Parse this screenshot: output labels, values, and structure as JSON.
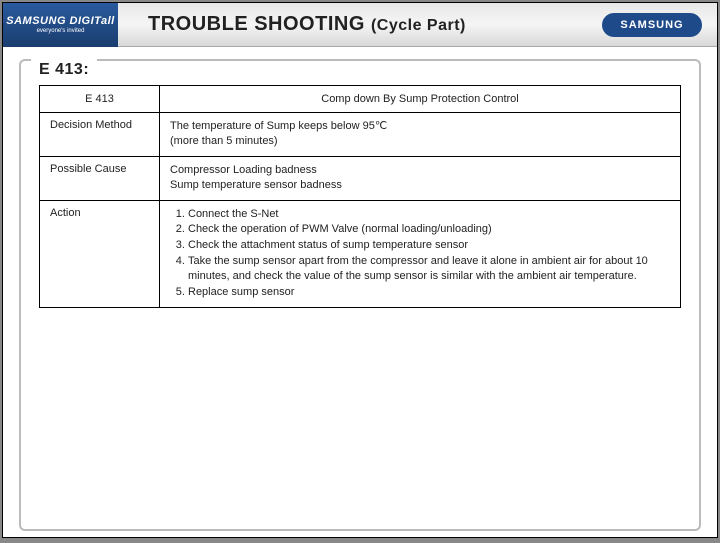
{
  "header": {
    "logo_left_brand": "SAMSUNG DIGITall",
    "logo_left_tagline": "everyone's invited",
    "title_main": "TROUBLE SHOOTING",
    "title_sub": "(Cycle Part)",
    "logo_right": "SAMSUNG"
  },
  "section": {
    "label": "E 413:"
  },
  "table": {
    "header_left": "E 413",
    "header_right": "Comp down By Sump Protection Control",
    "rows": [
      {
        "label": "Decision Method",
        "content": "The temperature of Sump keeps below 95℃\n (more than 5 minutes)"
      },
      {
        "label": "Possible Cause",
        "content": "Compressor Loading badness\nSump temperature sensor badness"
      },
      {
        "label": "Action",
        "content_list": [
          "Connect the S-Net",
          "Check the operation of PWM Valve (normal loading/unloading)",
          "Check the attachment status of sump temperature sensor",
          "Take the sump sensor apart from the compressor and leave it alone in ambient air for about 10 minutes, and check the value of the sump sensor is similar with the ambient air temperature.",
          "Replace sump sensor"
        ]
      }
    ]
  },
  "colors": {
    "brand_blue": "#1e4a8a",
    "header_gradient_top": "#e8e8e8",
    "header_gradient_bottom": "#d8d8d8",
    "border_gray": "#bbb",
    "text": "#222"
  }
}
